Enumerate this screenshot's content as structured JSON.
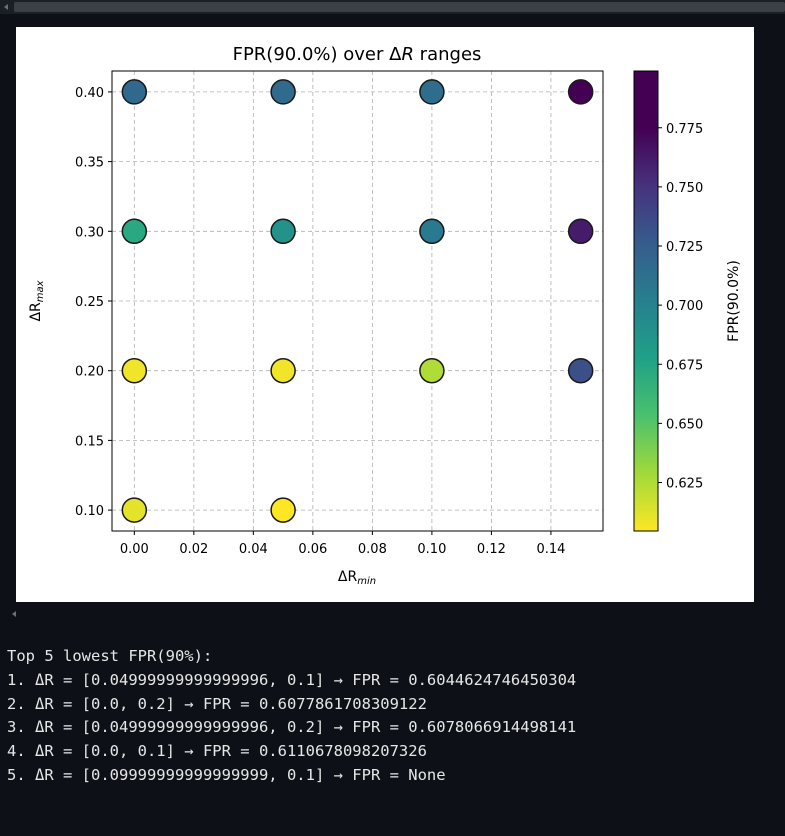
{
  "chart_data": {
    "type": "scatter",
    "title": "FPR(90.0%) over ΔR ranges",
    "title_main": "FPR(90.0%) over Δ",
    "title_italic": "R",
    "title_tail": " ranges",
    "xlabel": "ΔR_min",
    "xlabel_base": "ΔR",
    "xlabel_sub": "min",
    "ylabel": "ΔR_max",
    "ylabel_base": "ΔR",
    "ylabel_sub": "max",
    "xlim": [
      -0.0075,
      0.1575
    ],
    "ylim": [
      0.085,
      0.415
    ],
    "xticks": [
      0.0,
      0.02,
      0.04,
      0.06,
      0.08,
      0.1,
      0.12,
      0.14
    ],
    "xtick_labels": [
      "0.00",
      "0.02",
      "0.04",
      "0.06",
      "0.08",
      "0.10",
      "0.12",
      "0.14"
    ],
    "yticks": [
      0.1,
      0.15,
      0.2,
      0.25,
      0.3,
      0.35,
      0.4
    ],
    "ytick_labels": [
      "0.10",
      "0.15",
      "0.20",
      "0.25",
      "0.30",
      "0.35",
      "0.40"
    ],
    "grid": true,
    "colormap": "viridis_r",
    "colorbar": {
      "label": "FPR(90.0%)",
      "range": [
        0.6045,
        0.799
      ],
      "ticks": [
        0.625,
        0.65,
        0.675,
        0.7,
        0.725,
        0.75,
        0.775
      ],
      "tick_labels": [
        "0.625",
        "0.650",
        "0.675",
        "0.700",
        "0.725",
        "0.750",
        "0.775"
      ]
    },
    "points": [
      {
        "x": 0.0,
        "y": 0.1,
        "fpr": 0.6111
      },
      {
        "x": 0.0,
        "y": 0.2,
        "fpr": 0.6078
      },
      {
        "x": 0.0,
        "y": 0.3,
        "fpr": 0.672
      },
      {
        "x": 0.0,
        "y": 0.4,
        "fpr": 0.717
      },
      {
        "x": 0.05,
        "y": 0.1,
        "fpr": 0.6045
      },
      {
        "x": 0.05,
        "y": 0.2,
        "fpr": 0.6078
      },
      {
        "x": 0.05,
        "y": 0.3,
        "fpr": 0.688
      },
      {
        "x": 0.05,
        "y": 0.4,
        "fpr": 0.716
      },
      {
        "x": 0.1,
        "y": 0.2,
        "fpr": 0.625
      },
      {
        "x": 0.1,
        "y": 0.3,
        "fpr": 0.705
      },
      {
        "x": 0.1,
        "y": 0.4,
        "fpr": 0.714
      },
      {
        "x": 0.15,
        "y": 0.2,
        "fpr": 0.733
      },
      {
        "x": 0.15,
        "y": 0.3,
        "fpr": 0.762
      },
      {
        "x": 0.15,
        "y": 0.4,
        "fpr": 0.799
      }
    ]
  },
  "output": {
    "lines": [
      "Top 5 lowest FPR(90%):",
      "1. ΔR = [0.04999999999999996, 0.1] → FPR = 0.6044624746450304",
      "2. ΔR = [0.0, 0.2] → FPR = 0.6077861708309122",
      "3. ΔR = [0.04999999999999996, 0.2] → FPR = 0.6078066914498141",
      "4. ΔR = [0.0, 0.1] → FPR = 0.6110678098207326",
      "5. ΔR = [0.09999999999999999, 0.1] → FPR = None"
    ]
  }
}
